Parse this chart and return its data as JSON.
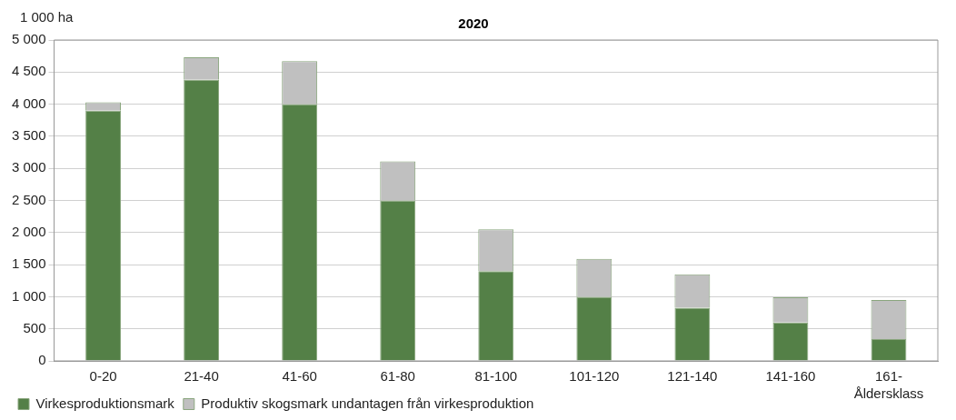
{
  "chart_data": {
    "type": "bar",
    "title": "2020",
    "ylabel": "1 000 ha",
    "xlabel": "Åldersklass",
    "stacked": true,
    "categories": [
      "0-20",
      "21-40",
      "41-60",
      "61-80",
      "81-100",
      "101-120",
      "121-140",
      "141-160",
      "161-"
    ],
    "series": [
      {
        "name": "Virkesproduktionsmark",
        "color": "#548047",
        "values": [
          3900,
          4380,
          4000,
          2500,
          1400,
          1000,
          830,
          600,
          340
        ]
      },
      {
        "name": "Produktiv skogsmark undantagen från virkesproduktion",
        "color": "#c0c0c0",
        "values": [
          130,
          350,
          670,
          610,
          650,
          590,
          520,
          390,
          610
        ]
      }
    ],
    "ylim": [
      0,
      5000
    ],
    "yticks": [
      0,
      500,
      {
        "value": 1000,
        "label": "1 000"
      },
      {
        "value": 1500,
        "label": "1 500"
      },
      {
        "value": 2000,
        "label": "2 000"
      },
      {
        "value": 2500,
        "label": "2 500"
      },
      {
        "value": 3000,
        "label": "3 000"
      },
      {
        "value": 3500,
        "label": "3 500"
      },
      {
        "value": 4000,
        "label": "4 000"
      },
      {
        "value": 4500,
        "label": "4 500"
      },
      {
        "value": 5000,
        "label": "5 000"
      }
    ],
    "grid": "y",
    "legend": "bottom"
  }
}
